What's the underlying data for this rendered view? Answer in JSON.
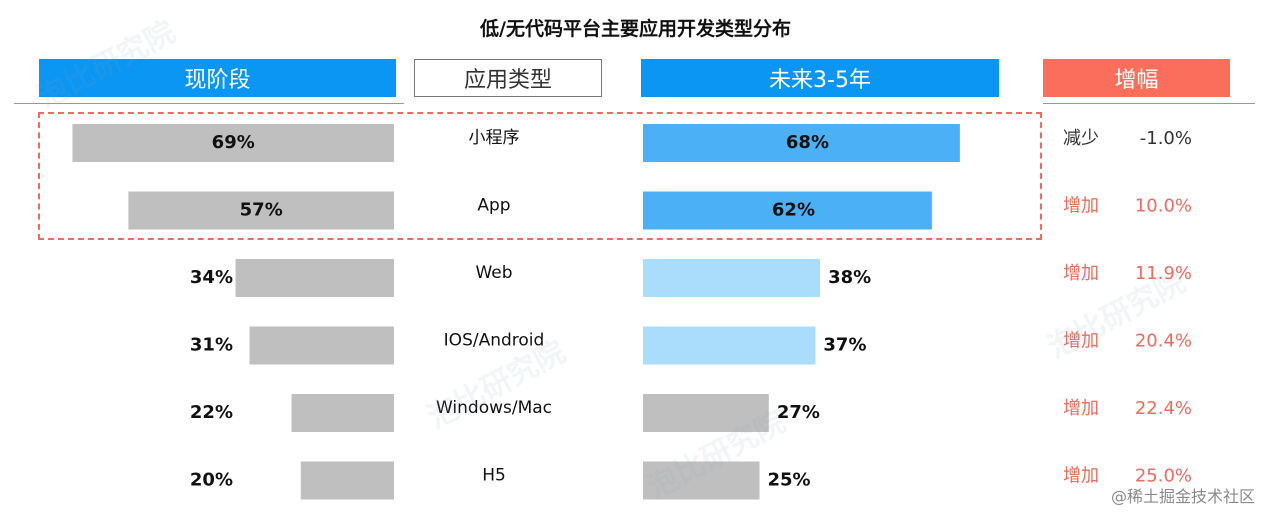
{
  "chart_data": {
    "type": "bar",
    "title": "低/无代码平台主要应用开发类型分布",
    "headers": {
      "current": "现阶段",
      "type": "应用类型",
      "future": "未来3-5年",
      "growth": "增幅"
    },
    "categories": [
      "小程序",
      "App",
      "Web",
      "IOS/Android",
      "Windows/Mac",
      "H5"
    ],
    "series": [
      {
        "name": "现阶段",
        "values": [
          69,
          57,
          34,
          31,
          22,
          20
        ],
        "labels": [
          "69%",
          "57%",
          "34%",
          "31%",
          "22%",
          "20%"
        ]
      },
      {
        "name": "未来3-5年",
        "values": [
          68,
          62,
          38,
          37,
          27,
          25
        ],
        "labels": [
          "68%",
          "62%",
          "38%",
          "37%",
          "27%",
          "25%"
        ]
      }
    ],
    "changes": [
      {
        "dir": "减少",
        "value": "-1.0%"
      },
      {
        "dir": "增加",
        "value": "10.0%"
      },
      {
        "dir": "增加",
        "value": "11.9%"
      },
      {
        "dir": "增加",
        "value": "20.4%"
      },
      {
        "dir": "增加",
        "value": "22.4%"
      },
      {
        "dir": "增加",
        "value": "25.0%"
      }
    ],
    "highlighted_categories": [
      "小程序",
      "App"
    ],
    "colors": {
      "current_bar": "#bfbfbf",
      "future_bar_high": "#4cb0f7",
      "future_bar_mid": "#aadcfb",
      "future_bar_low": "#bfbfbf",
      "decrease_text": "#333333",
      "increase_text": "#ec6c5f",
      "header_blue": "#0a96f2",
      "header_red": "#fb6e5c"
    },
    "future_color_levels": [
      "high",
      "high",
      "mid",
      "mid",
      "low",
      "low"
    ]
  },
  "watermark_text": "泡比研究院",
  "credit": "@稀土掘金技术社区"
}
